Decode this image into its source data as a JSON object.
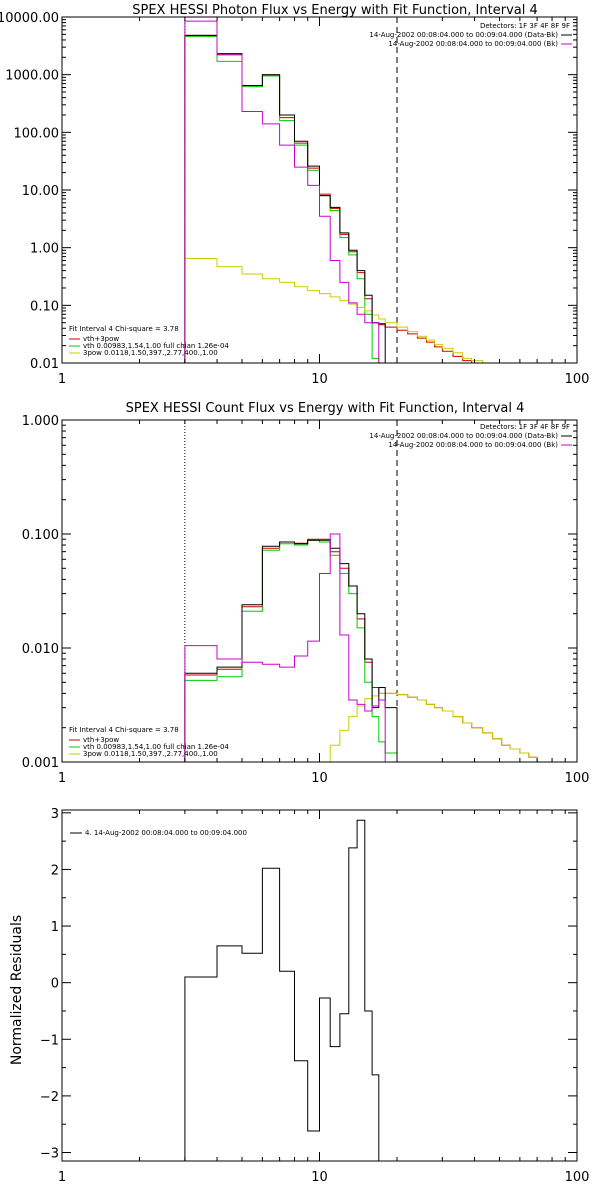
{
  "chart_data": [
    {
      "type": "line",
      "title": "SPEX HESSI Photon Flux vs Energy with Fit Function, Interval 4",
      "xlim": [
        1,
        100
      ],
      "ylim": [
        0.01,
        10000
      ],
      "log_x": true,
      "log_y": true,
      "grid": false,
      "x_tick_labels": [
        "1",
        "10",
        "100"
      ],
      "y_tick_labels": [
        "10000.00",
        "1000.00",
        "100.00",
        "10.00",
        "1.00",
        "0.10",
        "0.01"
      ],
      "header_lines": [
        "Detectors: 1F 3F 4F 8F 9F",
        "14-Aug-2002 00:08:04.000 to 00:09:04.000 (Data-Bk)",
        "14-Aug-2002 00:08:04.000 to 00:09:04.000 (Bk)"
      ],
      "fit_label": "Fit Interval 4   Chi-square = 3.78",
      "energy_low": 3,
      "energy_high": 20,
      "edges": [
        3,
        4,
        5,
        6,
        7,
        8,
        9,
        10,
        11,
        12,
        13,
        14,
        15,
        16,
        17,
        18,
        20,
        22,
        24,
        26,
        28,
        30,
        33,
        36,
        39,
        43,
        47,
        51,
        55
      ],
      "series": [
        {
          "name": "vth+3pow",
          "color": "#cc0000",
          "values": [
            4800,
            2300,
            650,
            1000,
            180,
            65,
            24,
            8.5,
            4.8,
            1.7,
            0.85,
            0.37,
            0.13,
            0.05,
            0.046,
            0.042,
            0.037,
            0.032,
            0.027,
            0.023,
            0.019,
            0.016,
            0.013,
            0.011,
            0.009,
            null,
            null,
            null
          ]
        },
        {
          "name": "vth 0.00983,1.54,1.00  full chian 1.26e-04",
          "color": "#00cc00",
          "values": [
            4600,
            1700,
            620,
            950,
            160,
            60,
            22,
            8.0,
            4.4,
            1.5,
            0.75,
            0.29,
            0.07,
            0.012,
            null,
            null,
            null,
            null,
            null,
            null,
            null,
            null,
            null,
            null,
            null,
            null,
            null,
            null
          ]
        },
        {
          "name": "3pow 0.0118,1.50,397.,2.77,400.,1.00",
          "color": "#cccc00",
          "values": [
            0.65,
            0.47,
            0.35,
            0.29,
            0.25,
            0.21,
            0.18,
            0.16,
            0.14,
            0.12,
            0.105,
            0.092,
            0.08,
            0.068,
            0.058,
            0.05,
            0.042,
            0.035,
            0.029,
            0.025,
            0.021,
            0.018,
            0.015,
            0.012,
            0.011,
            0.01,
            0.009,
            0.008
          ]
        },
        {
          "name": "Data",
          "color": "#000000",
          "values": [
            4800,
            2300,
            650,
            1000,
            200,
            70,
            26,
            8.0,
            5.0,
            1.8,
            0.9,
            0.4,
            0.15,
            0.05,
            0.048,
            null,
            null,
            null,
            null,
            null,
            null,
            null,
            null,
            null,
            null,
            null,
            null,
            null
          ]
        },
        {
          "name": "Background",
          "color": "#cc00cc",
          "values": [
            8500,
            2200,
            230,
            140,
            60,
            25,
            12,
            3.5,
            0.6,
            0.25,
            0.11,
            0.07,
            0.05,
            0.05,
            null,
            null,
            null,
            null,
            null,
            null,
            null,
            null,
            null,
            null,
            null,
            null,
            null,
            null
          ]
        }
      ],
      "legend": [
        "vth+3pow",
        "vth 0.00983,1.54,1.00  full chian 1.26e-04",
        "3pow 0.0118,1.50,397.,2.77,400.,1.00"
      ]
    },
    {
      "type": "line",
      "title": "SPEX HESSI Count Flux vs Energy with Fit Function, Interval 4",
      "xlim": [
        1,
        100
      ],
      "ylim": [
        0.001,
        1
      ],
      "log_x": true,
      "log_y": true,
      "grid": false,
      "x_tick_labels": [
        "1",
        "10",
        "100"
      ],
      "y_tick_labels": [
        "1.000",
        "0.100",
        "0.010",
        "0.001"
      ],
      "header_lines": [
        "Detectors: 1F 3F 4F 8F 9F",
        "14-Aug-2002 00:08:04.000 to 00:09:04.000 (Data-Bk)",
        "14-Aug-2002 00:08:04.000 to 00:09:04.000 (Bk)"
      ],
      "fit_label": "Fit Interval 4   Chi-square = 3.78",
      "energy_low": 3,
      "energy_high": 20,
      "edges": [
        3,
        4,
        5,
        6,
        7,
        8,
        9,
        10,
        11,
        12,
        13,
        14,
        15,
        16,
        17,
        18,
        20,
        22,
        24,
        26,
        28,
        30,
        33,
        36,
        39,
        43,
        47,
        51,
        55,
        60,
        65,
        70,
        75,
        80,
        85,
        90,
        95,
        100
      ],
      "series": [
        {
          "name": "vth+3pow",
          "color": "#cc0000",
          "values": [
            0.0058,
            0.0065,
            0.023,
            0.075,
            0.085,
            0.083,
            0.09,
            0.09,
            0.07,
            0.05,
            0.035,
            0.018,
            0.0075,
            0.0045,
            0.004,
            0.004,
            0.0039,
            0.0037,
            0.0035,
            0.0032,
            0.003,
            0.0028,
            0.0025,
            0.0022,
            0.002,
            0.0018,
            0.0016,
            0.0014,
            0.0013,
            0.0012,
            0.0011,
            0.001,
            0.001,
            null,
            null,
            null,
            null
          ]
        },
        {
          "name": "vth 0.00983,1.54,1.00  full chian 1.26e-04",
          "color": "#00cc00",
          "values": [
            0.0052,
            0.0056,
            0.021,
            0.072,
            0.082,
            0.08,
            0.088,
            0.085,
            0.065,
            0.045,
            0.03,
            0.015,
            0.005,
            0.0025,
            0.0015,
            0.0012,
            0.001,
            null,
            null,
            null,
            null,
            null,
            null,
            null,
            null,
            null,
            null,
            null,
            null,
            null,
            null,
            null,
            null,
            null,
            null,
            null,
            null
          ]
        },
        {
          "name": "3pow 0.0118,1.50,397.,2.77,400.,1.00",
          "color": "#cccc00",
          "values": [
            null,
            null,
            null,
            null,
            null,
            null,
            null,
            0.001,
            0.0014,
            0.0019,
            0.0025,
            0.0031,
            0.0036,
            0.0038,
            0.004,
            0.004,
            0.0039,
            0.0037,
            0.0035,
            0.0032,
            0.003,
            0.0028,
            0.0025,
            0.0022,
            0.002,
            0.0018,
            0.0016,
            0.0014,
            0.0013,
            0.0012,
            0.0011,
            0.001,
            null,
            null,
            null,
            null,
            null
          ]
        },
        {
          "name": "Data",
          "color": "#000000",
          "values": [
            0.006,
            0.0068,
            0.024,
            0.078,
            0.085,
            0.082,
            0.088,
            0.088,
            0.075,
            0.055,
            0.035,
            0.02,
            0.008,
            0.003,
            0.0045,
            0.003,
            null,
            null,
            null,
            null,
            null,
            null,
            null,
            null,
            null,
            null,
            null,
            null,
            null,
            null,
            null,
            null,
            null,
            null,
            null,
            null,
            null
          ]
        },
        {
          "name": "Background",
          "color": "#cc00cc",
          "values": [
            0.0105,
            0.008,
            0.0075,
            0.0072,
            0.0068,
            0.0085,
            0.0115,
            0.045,
            0.1,
            0.013,
            0.0035,
            0.0032,
            0.0028,
            0.0031,
            0.0035,
            null,
            null,
            null,
            null,
            null,
            null,
            null,
            null,
            null,
            null,
            null,
            null,
            null,
            null,
            null,
            null,
            null,
            null,
            null,
            null,
            null,
            null
          ]
        }
      ],
      "legend": [
        "vth+3pow",
        "vth 0.00983,1.54,1.00  full chian 1.26e-04",
        "3pow 0.0118,1.50,397.,2.77,400.,1.00"
      ]
    },
    {
      "type": "line",
      "title": "",
      "ylabel": "Normalized Residuals",
      "xlim": [
        1,
        100
      ],
      "ylim": [
        -3.15,
        3.05
      ],
      "log_x": true,
      "log_y": false,
      "grid": false,
      "x_tick_labels": [
        "1",
        "10",
        "100"
      ],
      "y_ticks": [
        3,
        2,
        1,
        0,
        -1,
        -2,
        -3
      ],
      "y_tick_labels": [
        "3",
        "2",
        "1",
        "0",
        "−1",
        "−2",
        "−3"
      ],
      "legend": [
        "4. 14-Aug-2002 00:08:04.000 to 00:09:04.000"
      ],
      "edges": [
        3,
        4,
        5,
        6,
        7,
        8,
        9,
        10,
        11,
        12,
        13,
        14,
        15,
        16,
        17,
        18,
        20
      ],
      "series": [
        {
          "name": "4. 14-Aug-2002 00:08:04.000 to 00:09:04.000",
          "color": "#000000",
          "values": [
            0.1,
            0.65,
            0.52,
            2.02,
            0.2,
            -1.38,
            -2.62,
            -0.27,
            -1.13,
            -0.55,
            2.38,
            2.87,
            -0.5,
            -1.63,
            -3.15,
            -3.15
          ]
        }
      ]
    }
  ]
}
